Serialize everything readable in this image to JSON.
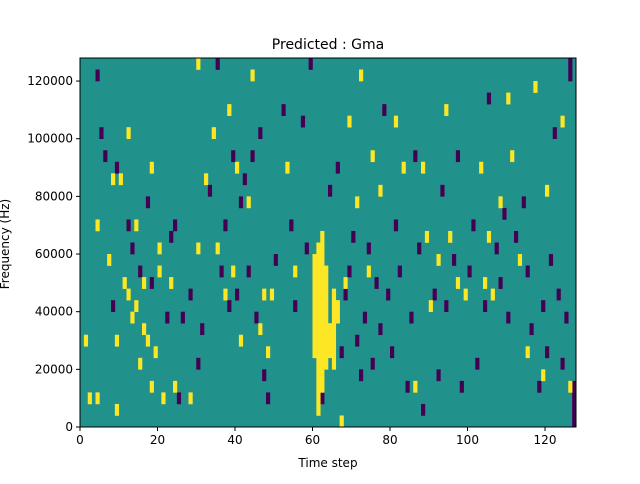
{
  "chart_data": {
    "type": "heatmap",
    "title": "Predicted : Gma",
    "xlabel": "Time step",
    "ylabel": "Frequency (Hz)",
    "xlim": [
      0,
      128
    ],
    "ylim": [
      0,
      128000
    ],
    "xticks": [
      0,
      20,
      40,
      60,
      80,
      100,
      120
    ],
    "yticks": [
      0,
      20000,
      40000,
      60000,
      80000,
      100000,
      120000
    ],
    "grid": false,
    "colors": {
      "background": "#21918c",
      "high": "#fde725",
      "low": "#440154"
    },
    "columns_note_values": "each column: time step index, list of [frequency_low_hz, frequency_high_hz, value] cells",
    "high_cells": [
      [
        1,
        28000,
        32000
      ],
      [
        2,
        8000,
        12000
      ],
      [
        4,
        8000,
        12000
      ],
      [
        4,
        68000,
        72000
      ],
      [
        7,
        56000,
        60000
      ],
      [
        8,
        84000,
        88000
      ],
      [
        9,
        4000,
        8000
      ],
      [
        9,
        28000,
        32000
      ],
      [
        10,
        84000,
        88000
      ],
      [
        11,
        48000,
        52000
      ],
      [
        12,
        44000,
        48000
      ],
      [
        12,
        100000,
        104000
      ],
      [
        13,
        36000,
        40000
      ],
      [
        14,
        40000,
        44000
      ],
      [
        14,
        68000,
        72000
      ],
      [
        15,
        20000,
        24000
      ],
      [
        16,
        48000,
        52000
      ],
      [
        16,
        32000,
        36000
      ],
      [
        17,
        28000,
        32000
      ],
      [
        18,
        12000,
        16000
      ],
      [
        18,
        88000,
        92000
      ],
      [
        19,
        24000,
        28000
      ],
      [
        20,
        52000,
        56000
      ],
      [
        20,
        60000,
        64000
      ],
      [
        21,
        8000,
        12000
      ],
      [
        23,
        48000,
        52000
      ],
      [
        24,
        12000,
        16000
      ],
      [
        28,
        8000,
        12000
      ],
      [
        30,
        60000,
        64000
      ],
      [
        30,
        124000,
        128000
      ],
      [
        32,
        84000,
        88000
      ],
      [
        34,
        100000,
        104000
      ],
      [
        35,
        60000,
        64000
      ],
      [
        37,
        44000,
        48000
      ],
      [
        38,
        108000,
        112000
      ],
      [
        39,
        52000,
        56000
      ],
      [
        40,
        88000,
        92000
      ],
      [
        41,
        28000,
        32000
      ],
      [
        43,
        76000,
        80000
      ],
      [
        44,
        120000,
        124000
      ],
      [
        46,
        32000,
        36000
      ],
      [
        47,
        44000,
        48000
      ],
      [
        48,
        24000,
        28000
      ],
      [
        49,
        44000,
        48000
      ],
      [
        53,
        88000,
        92000
      ],
      [
        55,
        52000,
        56000
      ],
      [
        60,
        24000,
        60000
      ],
      [
        61,
        4000,
        64000
      ],
      [
        62,
        12000,
        68000
      ],
      [
        63,
        20000,
        56000
      ],
      [
        64,
        24000,
        36000
      ],
      [
        65,
        20000,
        48000
      ],
      [
        66,
        36000,
        44000
      ],
      [
        67,
        0,
        4000
      ],
      [
        68,
        48000,
        52000
      ],
      [
        69,
        104000,
        108000
      ],
      [
        71,
        76000,
        80000
      ],
      [
        72,
        120000,
        124000
      ],
      [
        74,
        52000,
        56000
      ],
      [
        75,
        92000,
        96000
      ],
      [
        77,
        80000,
        84000
      ],
      [
        81,
        104000,
        108000
      ],
      [
        83,
        88000,
        92000
      ],
      [
        86,
        12000,
        16000
      ],
      [
        88,
        88000,
        92000
      ],
      [
        89,
        64000,
        68000
      ],
      [
        90,
        40000,
        44000
      ],
      [
        92,
        56000,
        60000
      ],
      [
        94,
        108000,
        112000
      ],
      [
        95,
        64000,
        68000
      ],
      [
        97,
        48000,
        52000
      ],
      [
        99,
        44000,
        48000
      ],
      [
        103,
        88000,
        92000
      ],
      [
        104,
        48000,
        52000
      ],
      [
        105,
        64000,
        68000
      ],
      [
        106,
        44000,
        48000
      ],
      [
        108,
        76000,
        80000
      ],
      [
        110,
        112000,
        116000
      ],
      [
        111,
        92000,
        96000
      ],
      [
        113,
        56000,
        60000
      ],
      [
        115,
        24000,
        28000
      ],
      [
        117,
        116000,
        120000
      ],
      [
        119,
        16000,
        20000
      ],
      [
        120,
        80000,
        84000
      ],
      [
        124,
        104000,
        108000
      ],
      [
        126,
        12000,
        16000
      ]
    ],
    "low_cells": [
      [
        4,
        120000,
        124000
      ],
      [
        5,
        100000,
        104000
      ],
      [
        6,
        92000,
        96000
      ],
      [
        8,
        40000,
        44000
      ],
      [
        9,
        88000,
        92000
      ],
      [
        12,
        68000,
        72000
      ],
      [
        13,
        60000,
        64000
      ],
      [
        15,
        52000,
        56000
      ],
      [
        17,
        76000,
        80000
      ],
      [
        18,
        48000,
        52000
      ],
      [
        22,
        36000,
        40000
      ],
      [
        23,
        64000,
        68000
      ],
      [
        24,
        68000,
        72000
      ],
      [
        25,
        8000,
        12000
      ],
      [
        26,
        36000,
        40000
      ],
      [
        28,
        44000,
        48000
      ],
      [
        30,
        20000,
        24000
      ],
      [
        31,
        32000,
        36000
      ],
      [
        33,
        80000,
        84000
      ],
      [
        35,
        124000,
        128000
      ],
      [
        36,
        52000,
        56000
      ],
      [
        37,
        68000,
        72000
      ],
      [
        38,
        40000,
        44000
      ],
      [
        39,
        92000,
        96000
      ],
      [
        40,
        44000,
        48000
      ],
      [
        41,
        76000,
        80000
      ],
      [
        42,
        84000,
        88000
      ],
      [
        43,
        52000,
        56000
      ],
      [
        44,
        92000,
        96000
      ],
      [
        45,
        36000,
        40000
      ],
      [
        46,
        100000,
        104000
      ],
      [
        47,
        16000,
        20000
      ],
      [
        48,
        8000,
        12000
      ],
      [
        50,
        56000,
        60000
      ],
      [
        52,
        108000,
        112000
      ],
      [
        54,
        68000,
        72000
      ],
      [
        55,
        40000,
        44000
      ],
      [
        57,
        104000,
        108000
      ],
      [
        58,
        60000,
        64000
      ],
      [
        59,
        124000,
        128000
      ],
      [
        62,
        8000,
        12000
      ],
      [
        64,
        80000,
        84000
      ],
      [
        66,
        88000,
        92000
      ],
      [
        67,
        24000,
        28000
      ],
      [
        68,
        44000,
        48000
      ],
      [
        69,
        52000,
        56000
      ],
      [
        70,
        64000,
        68000
      ],
      [
        71,
        28000,
        32000
      ],
      [
        72,
        16000,
        20000
      ],
      [
        73,
        36000,
        40000
      ],
      [
        74,
        60000,
        64000
      ],
      [
        75,
        20000,
        24000
      ],
      [
        76,
        48000,
        52000
      ],
      [
        77,
        32000,
        36000
      ],
      [
        78,
        108000,
        112000
      ],
      [
        79,
        44000,
        48000
      ],
      [
        80,
        24000,
        28000
      ],
      [
        81,
        68000,
        72000
      ],
      [
        82,
        52000,
        56000
      ],
      [
        84,
        12000,
        16000
      ],
      [
        85,
        36000,
        40000
      ],
      [
        86,
        92000,
        96000
      ],
      [
        87,
        60000,
        64000
      ],
      [
        88,
        4000,
        8000
      ],
      [
        91,
        44000,
        48000
      ],
      [
        92,
        16000,
        20000
      ],
      [
        93,
        80000,
        84000
      ],
      [
        94,
        40000,
        44000
      ],
      [
        96,
        56000,
        60000
      ],
      [
        97,
        92000,
        96000
      ],
      [
        98,
        12000,
        16000
      ],
      [
        100,
        52000,
        56000
      ],
      [
        101,
        68000,
        72000
      ],
      [
        102,
        20000,
        24000
      ],
      [
        104,
        40000,
        44000
      ],
      [
        105,
        112000,
        116000
      ],
      [
        107,
        60000,
        64000
      ],
      [
        108,
        48000,
        52000
      ],
      [
        109,
        72000,
        76000
      ],
      [
        110,
        36000,
        40000
      ],
      [
        112,
        64000,
        68000
      ],
      [
        114,
        76000,
        80000
      ],
      [
        115,
        52000,
        56000
      ],
      [
        116,
        32000,
        36000
      ],
      [
        118,
        12000,
        16000
      ],
      [
        119,
        40000,
        44000
      ],
      [
        120,
        24000,
        28000
      ],
      [
        121,
        56000,
        60000
      ],
      [
        122,
        100000,
        104000
      ],
      [
        123,
        44000,
        48000
      ],
      [
        124,
        20000,
        24000
      ],
      [
        125,
        36000,
        40000
      ],
      [
        126,
        120000,
        128000
      ],
      [
        127,
        0,
        16000
      ]
    ]
  }
}
